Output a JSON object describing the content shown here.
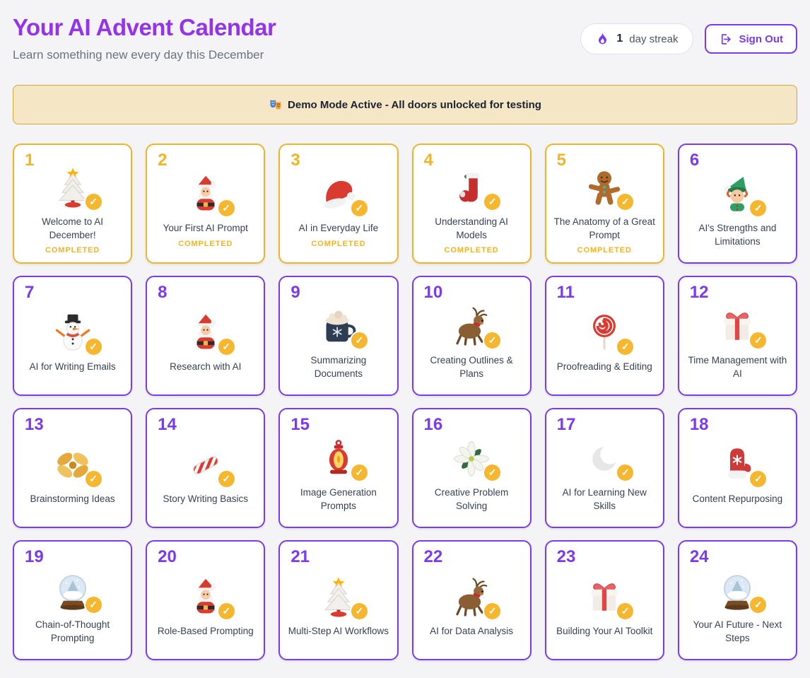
{
  "header": {
    "title": "Your AI Advent Calendar",
    "subtitle": "Learn something new every day this December",
    "streak": {
      "count": "1",
      "label": "day streak",
      "icon": "flame-icon"
    },
    "sign_out_label": "Sign Out"
  },
  "banner": {
    "emoji": "🎭",
    "text": "Demo Mode Active - All doors unlocked for testing"
  },
  "colors": {
    "title_purple": "#9333EA",
    "accent_purple": "#7C3AED",
    "completed_amber": "#F0B429",
    "banner_bg": "#F5E7C6",
    "banner_border": "#CFA53C",
    "page_bg": "#F4F4F6"
  },
  "days": [
    {
      "number": "1",
      "title": "Welcome to AI December!",
      "icon": "christmas-tree",
      "completed": true,
      "status": "COMPLETED"
    },
    {
      "number": "2",
      "title": "Your First AI Prompt",
      "icon": "santa",
      "completed": true,
      "status": "COMPLETED"
    },
    {
      "number": "3",
      "title": "AI in Everyday Life",
      "icon": "santa-hat",
      "completed": true,
      "status": "COMPLETED"
    },
    {
      "number": "4",
      "title": "Understanding AI Models",
      "icon": "stocking",
      "completed": true,
      "status": "COMPLETED"
    },
    {
      "number": "5",
      "title": "The Anatomy of a Great Prompt",
      "icon": "gingerbread-man",
      "completed": true,
      "status": "COMPLETED"
    },
    {
      "number": "6",
      "title": "AI's Strengths and Limitations",
      "icon": "elf",
      "completed": false
    },
    {
      "number": "7",
      "title": "AI for Writing Emails",
      "icon": "snowman",
      "completed": false
    },
    {
      "number": "8",
      "title": "Research with AI",
      "icon": "santa",
      "completed": false
    },
    {
      "number": "9",
      "title": "Summarizing Documents",
      "icon": "hot-cocoa",
      "completed": false
    },
    {
      "number": "10",
      "title": "Creating Outlines & Plans",
      "icon": "reindeer",
      "completed": false
    },
    {
      "number": "11",
      "title": "Proofreading & Editing",
      "icon": "lollipop",
      "completed": false
    },
    {
      "number": "12",
      "title": "Time Management with AI",
      "icon": "gift",
      "completed": false
    },
    {
      "number": "13",
      "title": "Brainstorming Ideas",
      "icon": "ribbon-bow",
      "completed": false
    },
    {
      "number": "14",
      "title": "Story Writing Basics",
      "icon": "candy-cane",
      "completed": false
    },
    {
      "number": "15",
      "title": "Image Generation Prompts",
      "icon": "lantern",
      "completed": false
    },
    {
      "number": "16",
      "title": "Creative Problem Solving",
      "icon": "poinsettia",
      "completed": false
    },
    {
      "number": "17",
      "title": "AI for Learning New Skills",
      "icon": "crescent-moon",
      "completed": false
    },
    {
      "number": "18",
      "title": "Content Repurposing",
      "icon": "mitten",
      "completed": false
    },
    {
      "number": "19",
      "title": "Chain-of-Thought Prompting",
      "icon": "snow-globe",
      "completed": false
    },
    {
      "number": "20",
      "title": "Role-Based Prompting",
      "icon": "santa",
      "completed": false
    },
    {
      "number": "21",
      "title": "Multi-Step AI Workflows",
      "icon": "christmas-tree",
      "completed": false
    },
    {
      "number": "22",
      "title": "AI for Data Analysis",
      "icon": "reindeer",
      "completed": false
    },
    {
      "number": "23",
      "title": "Building Your AI Toolkit",
      "icon": "gift",
      "completed": false
    },
    {
      "number": "24",
      "title": "Your AI Future - Next Steps",
      "icon": "snow-globe",
      "completed": false
    }
  ]
}
